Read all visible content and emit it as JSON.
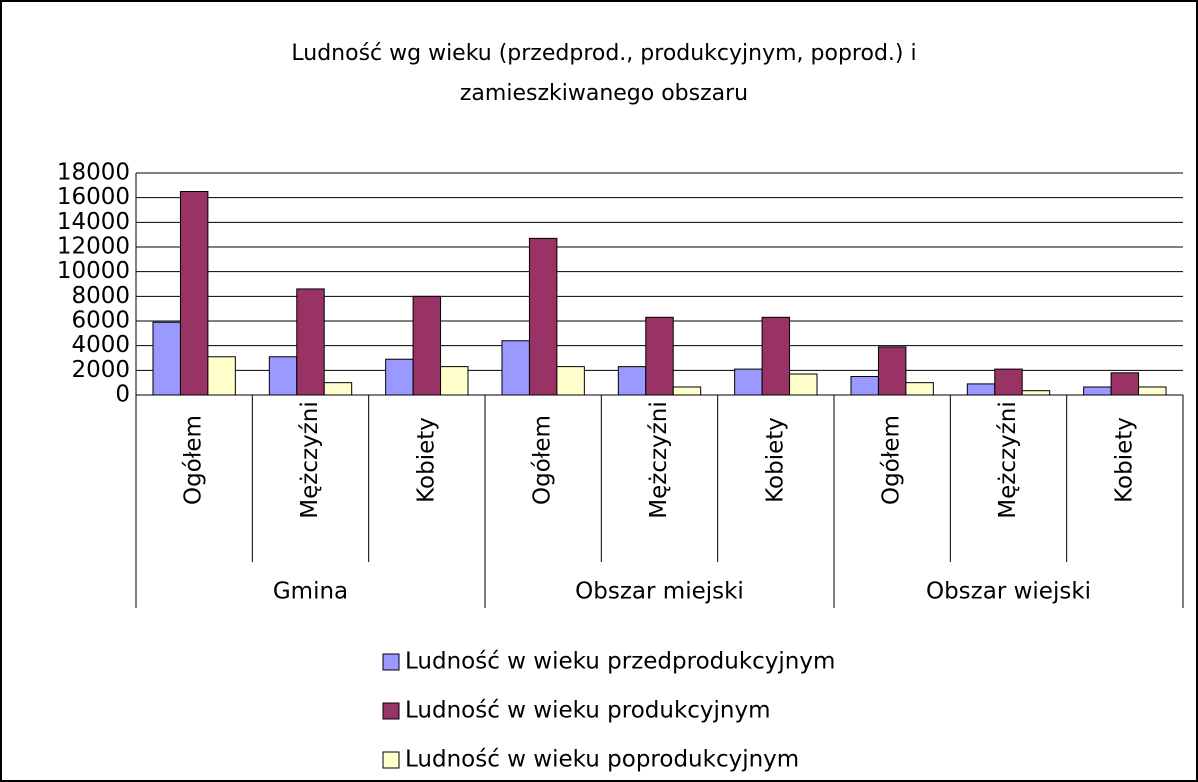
{
  "chart_data": {
    "type": "bar",
    "title": [
      "Ludność wg wieku (przedprod., produkcyjnym, poprod.) i",
      "zamieszkiwanego obszaru"
    ],
    "categories": [
      "Ogółem",
      "Mężczyźni",
      "Kobiety",
      "Ogółem",
      "Mężczyźni",
      "Kobiety",
      "Ogółem",
      "Mężczyźni",
      "Kobiety"
    ],
    "groups": [
      "Gmina",
      "Obszar miejski",
      "Obszar wiejski"
    ],
    "series": [
      {
        "name": "Ludność w wieku przedprodukcyjnym",
        "color": "#9999ff",
        "values": [
          5900,
          3100,
          2900,
          4400,
          2300,
          2100,
          1500,
          900,
          650
        ]
      },
      {
        "name": "Ludność w wieku produkcyjnym",
        "color": "#993366",
        "values": [
          16500,
          8600,
          8000,
          12700,
          6300,
          6300,
          3900,
          2100,
          1800
        ]
      },
      {
        "name": "Ludność w wieku poprodukcyjnym",
        "color": "#ffffcc",
        "values": [
          3100,
          1000,
          2300,
          2300,
          650,
          1700,
          1000,
          350,
          650
        ]
      }
    ],
    "ylim": [
      0,
      18000
    ],
    "yticks": [
      0,
      2000,
      4000,
      6000,
      8000,
      10000,
      12000,
      14000,
      16000,
      18000
    ],
    "grid": true,
    "legend": "bottom"
  }
}
